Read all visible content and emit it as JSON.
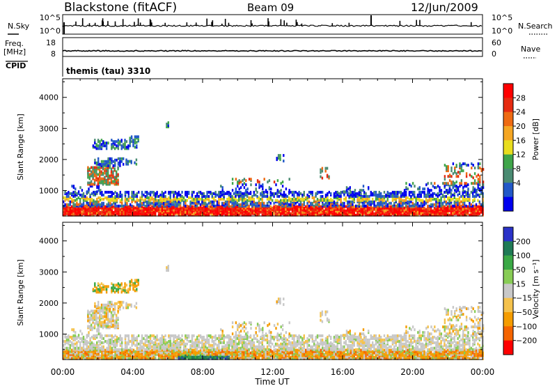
{
  "header": {
    "station": "Blackstone (fitACF)",
    "beam": "Beam 09",
    "date": "12/Jun/2009"
  },
  "status_panels": {
    "nsky_label": "N.Sky",
    "nsky_ticks": [
      "10^5",
      "10^0"
    ],
    "nsearch_label": "N.Search",
    "nsearch_ticks": [
      "10^5",
      "10^0"
    ],
    "freq_label_1": "Freq.",
    "freq_label_2": "[MHz]",
    "freq_ticks": [
      "18",
      "8"
    ],
    "nave_label": "Nave",
    "nave_ticks": [
      "60",
      "0"
    ],
    "cpid_label": "CPID",
    "cpid_text": "themis (tau) 3310"
  },
  "colors": {
    "power_scale": [
      "#0000ee",
      "#2258c8",
      "#4a8b72",
      "#3fa54a",
      "#e9dd1e",
      "#f5a623",
      "#ee6a12",
      "#e62a10",
      "#ff0000"
    ],
    "velocity_scale": [
      "#ff0000",
      "#f56400",
      "#f59c00",
      "#f5c24c",
      "#c8c8c8",
      "#88cc55",
      "#3aa845",
      "#1f7a55",
      "#2a32c8"
    ]
  },
  "chart_data": [
    {
      "type": "heatmap",
      "name": "power",
      "ylabel": "Slant Range [km]",
      "yticks": [
        "1000",
        "2000",
        "3000",
        "4000"
      ],
      "ylim": [
        180,
        4600
      ],
      "xticks": [
        "00:00",
        "04:00",
        "08:00",
        "12:00",
        "16:00",
        "20:00",
        "00:00"
      ],
      "xlim_hours": [
        0,
        24
      ],
      "colorbar": {
        "label": "Power [dB]",
        "ticks": [
          "28",
          "24",
          "20",
          "16",
          "12",
          "8",
          "4"
        ]
      }
    },
    {
      "type": "heatmap",
      "name": "velocity",
      "ylabel": "Slant Range [km]",
      "yticks": [
        "1000",
        "2000",
        "3000",
        "4000"
      ],
      "ylim": [
        180,
        4600
      ],
      "xticks": [
        "00:00",
        "04:00",
        "08:00",
        "12:00",
        "16:00",
        "20:00",
        "00:00"
      ],
      "xlim_hours": [
        0,
        24
      ],
      "xlabel": "Time UT",
      "colorbar": {
        "label": "Velocity [m s⁻¹]",
        "ticks": [
          "200",
          "100",
          "50",
          "15",
          "−15",
          "−50",
          "−100",
          "−200"
        ]
      }
    }
  ]
}
